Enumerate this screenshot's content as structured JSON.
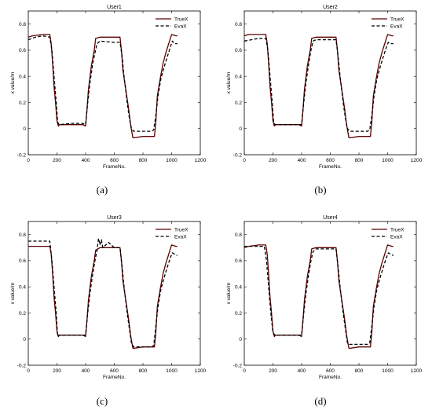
{
  "figure": {
    "captions": [
      "(a)",
      "(b)",
      "(c)",
      "(d)"
    ]
  },
  "style": {
    "truex_color": "#5a0000",
    "evax_color": "#000000",
    "axes_color": "#000000",
    "background": "#ffffff"
  },
  "chart_data": [
    {
      "type": "line",
      "title": "User1",
      "xlabel": "FrameNo.",
      "ylabel": "x value/m",
      "xlim": [
        0,
        1200
      ],
      "ylim": [
        -0.2,
        0.9
      ],
      "xticks": [
        0,
        200,
        400,
        600,
        800,
        1000,
        1200
      ],
      "yticks": [
        -0.2,
        0,
        0.2,
        0.4,
        0.6,
        0.8
      ],
      "xticklabels": [
        "0",
        "200",
        "400",
        "600",
        "800",
        "1000",
        "1200"
      ],
      "yticklabels": [
        "-0.2",
        "0",
        "0.2",
        "0.4",
        "0.6",
        "0.8"
      ],
      "legend_position": "top-right",
      "grid": false,
      "series": [
        {
          "name": "TrueX",
          "style": "solid",
          "x": [
            0,
            30,
            100,
            150,
            160,
            170,
            180,
            190,
            200,
            210,
            220,
            300,
            380,
            400,
            410,
            420,
            440,
            460,
            470,
            500,
            600,
            640,
            650,
            660,
            680,
            700,
            715,
            730,
            740,
            800,
            860,
            880,
            890,
            900,
            920,
            940,
            960,
            980,
            1000,
            1030,
            1040
          ],
          "y": [
            0.7,
            0.71,
            0.72,
            0.72,
            0.65,
            0.5,
            0.32,
            0.2,
            0.06,
            0.02,
            0.03,
            0.03,
            0.03,
            0.02,
            0.15,
            0.3,
            0.48,
            0.6,
            0.69,
            0.7,
            0.7,
            0.7,
            0.6,
            0.45,
            0.3,
            0.15,
            0.02,
            -0.07,
            -0.07,
            -0.06,
            -0.06,
            -0.06,
            0.05,
            0.25,
            0.38,
            0.5,
            0.58,
            0.65,
            0.72,
            0.71,
            0.71
          ]
        },
        {
          "name": "EvaX",
          "style": "dashed",
          "x": [
            0,
            50,
            100,
            150,
            165,
            180,
            195,
            205,
            215,
            300,
            380,
            400,
            415,
            430,
            450,
            465,
            480,
            500,
            600,
            640,
            655,
            670,
            690,
            705,
            720,
            735,
            800,
            860,
            875,
            890,
            905,
            925,
            950,
            970,
            990,
            1005,
            1020,
            1040
          ],
          "y": [
            0.68,
            0.7,
            0.71,
            0.7,
            0.6,
            0.4,
            0.2,
            0.05,
            0.03,
            0.04,
            0.04,
            0.03,
            0.2,
            0.35,
            0.5,
            0.58,
            0.65,
            0.67,
            0.66,
            0.66,
            0.55,
            0.38,
            0.2,
            0.08,
            0.0,
            -0.02,
            -0.02,
            -0.02,
            -0.01,
            0.1,
            0.25,
            0.38,
            0.48,
            0.55,
            0.62,
            0.67,
            0.65,
            0.65
          ]
        }
      ]
    },
    {
      "type": "line",
      "title": "User2",
      "xlabel": "FrameNo.",
      "ylabel": "x value/m",
      "xlim": [
        0,
        1200
      ],
      "ylim": [
        -0.2,
        0.9
      ],
      "xticks": [
        0,
        200,
        400,
        600,
        800,
        1000,
        1200
      ],
      "yticks": [
        -0.2,
        0,
        0.2,
        0.4,
        0.6,
        0.8
      ],
      "xticklabels": [
        "0",
        "200",
        "400",
        "600",
        "800",
        "1000",
        "1200"
      ],
      "yticklabels": [
        "-0.2",
        "0",
        "0.2",
        "0.4",
        "0.6",
        "0.8"
      ],
      "legend_position": "top-right",
      "grid": false,
      "series": [
        {
          "name": "TrueX",
          "style": "solid",
          "x": [
            0,
            30,
            100,
            150,
            160,
            170,
            180,
            190,
            200,
            210,
            220,
            300,
            380,
            400,
            410,
            420,
            440,
            460,
            470,
            500,
            600,
            640,
            650,
            660,
            680,
            700,
            715,
            730,
            740,
            800,
            860,
            880,
            890,
            900,
            920,
            940,
            960,
            980,
            1000,
            1030,
            1040
          ],
          "y": [
            0.71,
            0.72,
            0.72,
            0.72,
            0.65,
            0.5,
            0.32,
            0.2,
            0.06,
            0.02,
            0.03,
            0.03,
            0.03,
            0.02,
            0.15,
            0.3,
            0.48,
            0.6,
            0.69,
            0.7,
            0.7,
            0.7,
            0.6,
            0.45,
            0.3,
            0.15,
            0.02,
            -0.07,
            -0.07,
            -0.06,
            -0.06,
            -0.06,
            0.05,
            0.25,
            0.38,
            0.5,
            0.58,
            0.65,
            0.72,
            0.71,
            0.71
          ]
        },
        {
          "name": "EvaX",
          "style": "dashed",
          "x": [
            0,
            50,
            100,
            150,
            165,
            180,
            195,
            205,
            215,
            300,
            380,
            400,
            415,
            430,
            450,
            465,
            480,
            500,
            600,
            640,
            655,
            670,
            690,
            705,
            720,
            735,
            800,
            860,
            875,
            890,
            905,
            925,
            950,
            970,
            990,
            1005,
            1020,
            1040
          ],
          "y": [
            0.67,
            0.68,
            0.69,
            0.69,
            0.6,
            0.4,
            0.2,
            0.05,
            0.03,
            0.03,
            0.03,
            0.03,
            0.2,
            0.35,
            0.5,
            0.6,
            0.67,
            0.68,
            0.68,
            0.68,
            0.55,
            0.38,
            0.2,
            0.08,
            0.0,
            -0.02,
            -0.02,
            -0.02,
            -0.01,
            0.1,
            0.25,
            0.38,
            0.48,
            0.55,
            0.62,
            0.66,
            0.65,
            0.65
          ]
        }
      ]
    },
    {
      "type": "line",
      "title": "User3",
      "xlabel": "FrameNo.",
      "ylabel": "x value/m",
      "xlim": [
        0,
        1200
      ],
      "ylim": [
        -0.2,
        0.9
      ],
      "xticks": [
        0,
        200,
        400,
        600,
        800,
        1000,
        1200
      ],
      "yticks": [
        -0.2,
        0,
        0.2,
        0.4,
        0.6,
        0.8
      ],
      "xticklabels": [
        "0",
        "200",
        "400",
        "600",
        "800",
        "1000",
        "1200"
      ],
      "yticklabels": [
        "-0.2",
        "0",
        "0.2",
        "0.4",
        "0.6",
        "0.8"
      ],
      "legend_position": "top-right",
      "grid": false,
      "series": [
        {
          "name": "TrueX",
          "style": "solid",
          "x": [
            0,
            30,
            100,
            150,
            160,
            170,
            180,
            190,
            200,
            210,
            220,
            300,
            380,
            400,
            410,
            420,
            440,
            460,
            470,
            500,
            600,
            640,
            650,
            660,
            680,
            700,
            715,
            730,
            740,
            800,
            860,
            880,
            890,
            900,
            920,
            940,
            960,
            980,
            1000,
            1030,
            1040
          ],
          "y": [
            0.71,
            0.71,
            0.71,
            0.71,
            0.65,
            0.5,
            0.32,
            0.2,
            0.06,
            0.02,
            0.03,
            0.03,
            0.03,
            0.02,
            0.15,
            0.3,
            0.48,
            0.6,
            0.68,
            0.7,
            0.7,
            0.7,
            0.6,
            0.45,
            0.3,
            0.15,
            0.02,
            -0.07,
            -0.07,
            -0.06,
            -0.06,
            -0.06,
            0.05,
            0.25,
            0.38,
            0.5,
            0.58,
            0.65,
            0.72,
            0.71,
            0.71
          ]
        },
        {
          "name": "EvaX",
          "style": "dashed",
          "x": [
            0,
            50,
            100,
            150,
            165,
            180,
            195,
            205,
            215,
            300,
            380,
            400,
            415,
            430,
            450,
            465,
            480,
            490,
            500,
            510,
            520,
            540,
            560,
            600,
            640,
            655,
            670,
            690,
            705,
            720,
            735,
            800,
            860,
            875,
            890,
            905,
            925,
            950,
            970,
            990,
            1005,
            1020,
            1040
          ],
          "y": [
            0.75,
            0.75,
            0.75,
            0.75,
            0.6,
            0.4,
            0.2,
            0.02,
            0.03,
            0.03,
            0.03,
            0.03,
            0.2,
            0.35,
            0.5,
            0.6,
            0.68,
            0.77,
            0.72,
            0.76,
            0.7,
            0.72,
            0.74,
            0.7,
            0.7,
            0.55,
            0.38,
            0.2,
            0.08,
            -0.03,
            -0.06,
            -0.06,
            -0.06,
            -0.05,
            0.1,
            0.25,
            0.38,
            0.48,
            0.55,
            0.62,
            0.66,
            0.65,
            0.64
          ]
        }
      ]
    },
    {
      "type": "line",
      "title": "User4",
      "xlabel": "FrameNo.",
      "ylabel": "x value/m",
      "xlim": [
        0,
        1200
      ],
      "ylim": [
        -0.2,
        0.9
      ],
      "xticks": [
        0,
        200,
        400,
        600,
        800,
        1000,
        1200
      ],
      "yticks": [
        -0.2,
        0,
        0.2,
        0.4,
        0.6,
        0.8
      ],
      "xticklabels": [
        "0",
        "200",
        "400",
        "600",
        "800",
        "1000",
        "1200"
      ],
      "yticklabels": [
        "-0.2",
        "0",
        "0.2",
        "0.4",
        "0.6",
        "0.8"
      ],
      "legend_position": "top-right",
      "grid": false,
      "series": [
        {
          "name": "TrueX",
          "style": "solid",
          "x": [
            0,
            30,
            100,
            150,
            160,
            170,
            180,
            190,
            200,
            210,
            220,
            300,
            380,
            400,
            410,
            420,
            440,
            460,
            470,
            500,
            600,
            640,
            650,
            660,
            680,
            700,
            715,
            730,
            740,
            800,
            860,
            880,
            890,
            900,
            920,
            940,
            960,
            980,
            1000,
            1030,
            1040
          ],
          "y": [
            0.7,
            0.71,
            0.72,
            0.72,
            0.65,
            0.5,
            0.32,
            0.2,
            0.06,
            0.02,
            0.03,
            0.03,
            0.03,
            0.02,
            0.15,
            0.3,
            0.48,
            0.6,
            0.69,
            0.7,
            0.7,
            0.7,
            0.6,
            0.45,
            0.3,
            0.15,
            0.02,
            -0.07,
            -0.07,
            -0.06,
            -0.06,
            -0.06,
            0.05,
            0.25,
            0.38,
            0.5,
            0.58,
            0.65,
            0.72,
            0.71,
            0.71
          ]
        },
        {
          "name": "EvaX",
          "style": "dashed",
          "x": [
            0,
            50,
            100,
            140,
            155,
            170,
            185,
            200,
            215,
            300,
            380,
            400,
            415,
            430,
            450,
            465,
            480,
            500,
            600,
            640,
            655,
            670,
            690,
            705,
            720,
            735,
            800,
            860,
            875,
            890,
            905,
            925,
            950,
            970,
            990,
            1005,
            1020,
            1040
          ],
          "y": [
            0.71,
            0.71,
            0.71,
            0.71,
            0.6,
            0.4,
            0.2,
            0.05,
            0.03,
            0.03,
            0.03,
            0.03,
            0.2,
            0.35,
            0.5,
            0.6,
            0.67,
            0.69,
            0.69,
            0.69,
            0.55,
            0.38,
            0.2,
            0.08,
            -0.03,
            -0.04,
            -0.04,
            -0.04,
            -0.03,
            0.1,
            0.25,
            0.38,
            0.48,
            0.55,
            0.62,
            0.66,
            0.65,
            0.64
          ]
        }
      ]
    }
  ]
}
